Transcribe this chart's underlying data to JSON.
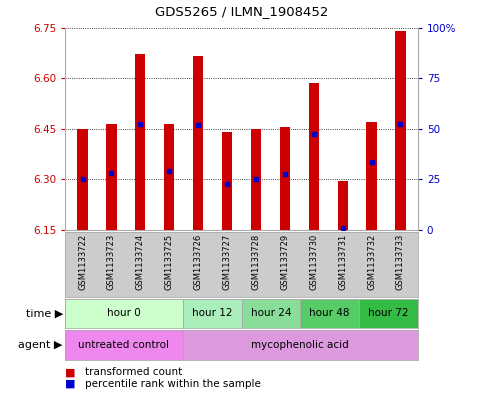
{
  "title": "GDS5265 / ILMN_1908452",
  "samples": [
    "GSM1133722",
    "GSM1133723",
    "GSM1133724",
    "GSM1133725",
    "GSM1133726",
    "GSM1133727",
    "GSM1133728",
    "GSM1133729",
    "GSM1133730",
    "GSM1133731",
    "GSM1133732",
    "GSM1133733"
  ],
  "bar_tops": [
    6.45,
    6.465,
    6.67,
    6.465,
    6.665,
    6.44,
    6.45,
    6.455,
    6.585,
    6.295,
    6.47,
    6.74
  ],
  "bar_bottoms": [
    6.15,
    6.15,
    6.15,
    6.15,
    6.15,
    6.15,
    6.15,
    6.15,
    6.15,
    6.15,
    6.15,
    6.15
  ],
  "percentile_values": [
    6.3,
    6.32,
    6.465,
    6.325,
    6.46,
    6.285,
    6.3,
    6.315,
    6.435,
    6.155,
    6.35,
    6.465
  ],
  "ylim_left": [
    6.15,
    6.75
  ],
  "ylim_right": [
    0,
    100
  ],
  "yticks_left": [
    6.15,
    6.3,
    6.45,
    6.6,
    6.75
  ],
  "yticks_right": [
    0,
    25,
    50,
    75,
    100
  ],
  "bar_color": "#cc0000",
  "percentile_color": "#0000cc",
  "grid_color": "#000000",
  "time_groups": [
    {
      "label": "hour 0",
      "start": 0,
      "end": 4,
      "color": "#ccffcc"
    },
    {
      "label": "hour 12",
      "start": 4,
      "end": 6,
      "color": "#aaeebb"
    },
    {
      "label": "hour 24",
      "start": 6,
      "end": 8,
      "color": "#88dd99"
    },
    {
      "label": "hour 48",
      "start": 8,
      "end": 10,
      "color": "#55cc66"
    },
    {
      "label": "hour 72",
      "start": 10,
      "end": 12,
      "color": "#33bb44"
    }
  ],
  "agent_groups": [
    {
      "label": "untreated control",
      "start": 0,
      "end": 4,
      "color": "#ee88ee"
    },
    {
      "label": "mycophenolic acid",
      "start": 4,
      "end": 12,
      "color": "#dd99dd"
    }
  ],
  "legend_red": "transformed count",
  "legend_blue": "percentile rank within the sample",
  "sample_bg_color": "#cccccc",
  "axis_color_left": "#cc0000",
  "axis_color_right": "#0000cc",
  "fig_bg": "#ffffff"
}
